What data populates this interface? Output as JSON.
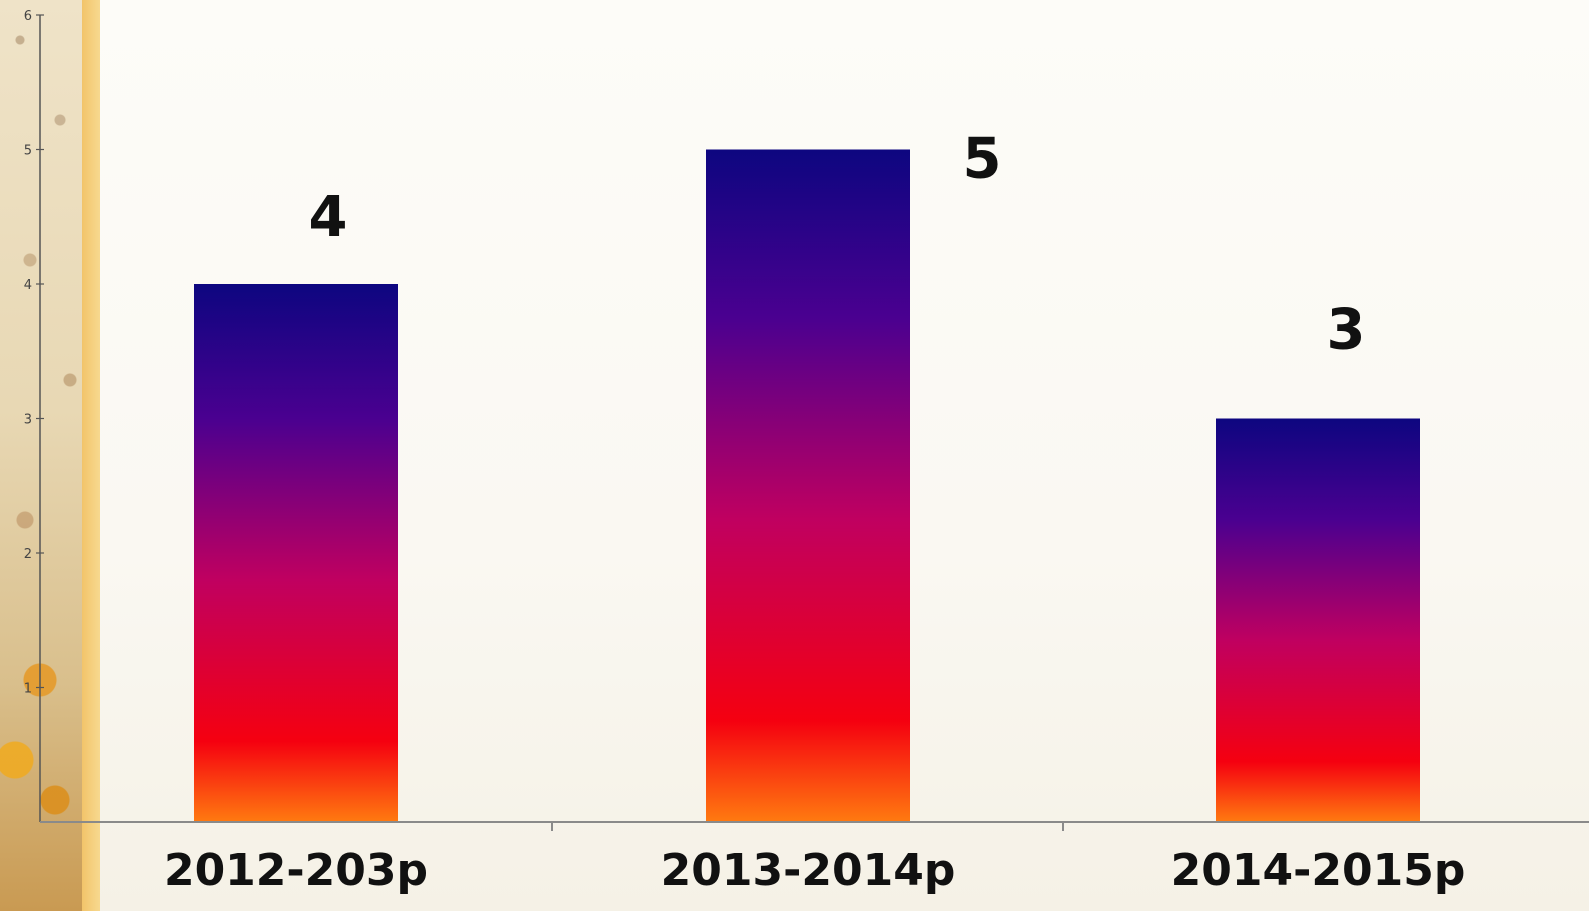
{
  "chart_data": {
    "type": "bar",
    "categories": [
      "2012-203р",
      "2013-2014р",
      "2014-2015р"
    ],
    "values": [
      4,
      5,
      3
    ],
    "data_labels": [
      "4",
      "5",
      "3"
    ],
    "ylim": [
      0,
      6
    ],
    "y_ticks": [
      "1",
      "2",
      "3",
      "4",
      "5",
      "6"
    ],
    "title": "",
    "xlabel": "",
    "ylabel": "",
    "grid": false,
    "legend": "none",
    "bar_gradient": [
      "#0d0680",
      "#4a0090",
      "#c00060",
      "#f50010",
      "#ff7a10"
    ]
  }
}
